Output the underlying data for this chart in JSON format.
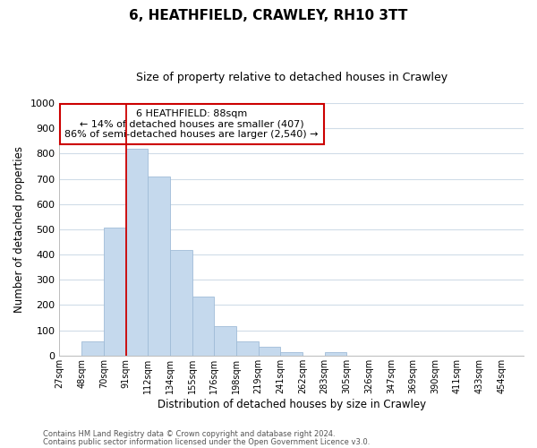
{
  "title": "6, HEATHFIELD, CRAWLEY, RH10 3TT",
  "subtitle": "Size of property relative to detached houses in Crawley",
  "xlabel": "Distribution of detached houses by size in Crawley",
  "ylabel": "Number of detached properties",
  "bar_color": "#c5d9ed",
  "bar_edge_color": "#a0bcd8",
  "bin_labels": [
    "27sqm",
    "48sqm",
    "70sqm",
    "91sqm",
    "112sqm",
    "134sqm",
    "155sqm",
    "176sqm",
    "198sqm",
    "219sqm",
    "241sqm",
    "262sqm",
    "283sqm",
    "305sqm",
    "326sqm",
    "347sqm",
    "369sqm",
    "390sqm",
    "411sqm",
    "433sqm",
    "454sqm"
  ],
  "bar_heights": [
    0,
    55,
    505,
    820,
    710,
    418,
    232,
    117,
    57,
    35,
    12,
    0,
    12,
    0,
    0,
    0,
    0,
    0,
    0,
    0,
    0
  ],
  "vline_x": 3,
  "vline_color": "#cc0000",
  "ylim": [
    0,
    1000
  ],
  "yticks": [
    0,
    100,
    200,
    300,
    400,
    500,
    600,
    700,
    800,
    900,
    1000
  ],
  "annotation_title": "6 HEATHFIELD: 88sqm",
  "annotation_line1": "← 14% of detached houses are smaller (407)",
  "annotation_line2": "86% of semi-detached houses are larger (2,540) →",
  "footer_line1": "Contains HM Land Registry data © Crown copyright and database right 2024.",
  "footer_line2": "Contains public sector information licensed under the Open Government Licence v3.0.",
  "background_color": "#ffffff",
  "grid_color": "#d0dce8"
}
